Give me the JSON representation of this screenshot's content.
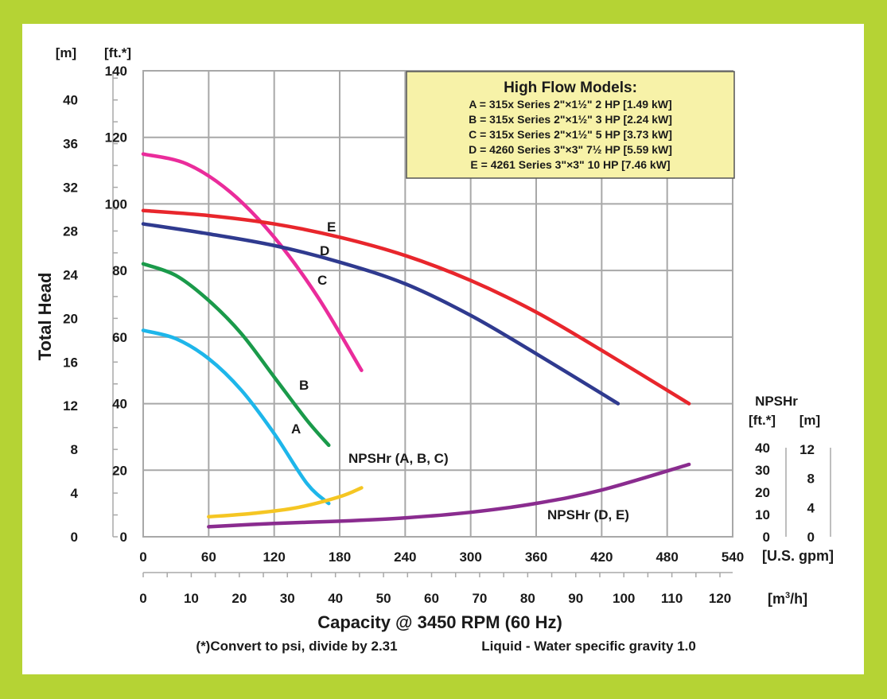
{
  "colors": {
    "frame_border": "#b5d334",
    "legend_bg": "#f7f2a8",
    "grid": "#a8a8a8",
    "A": "#1eb6ea",
    "B": "#1a9a4a",
    "C": "#ea2c9b",
    "D": "#2f3a8f",
    "E": "#e8262c",
    "npshr_abc": "#f5c623",
    "npshr_de": "#8a2c8f"
  },
  "legend": {
    "title": "High Flow Models:",
    "lines": [
      "A = 315x Series 2\"×1½\" 2 HP [1.49 kW]",
      "B = 315x Series 2\"×1½\" 3 HP [2.24 kW]",
      "C = 315x Series 2\"×1½\" 5 HP [3.73 kW]",
      "D = 4260 Series 3\"×3\" 7½ HP [5.59 kW]",
      "E = 4261 Series 3\"×3\" 10 HP [7.46 kW]"
    ]
  },
  "chart_data": {
    "type": "line",
    "title": "",
    "xlabel": "Capacity @ 3450 RPM (60 Hz)",
    "ylabel": "Total Head",
    "footnote_left": "(*)Convert to psi, divide by 2.31",
    "footnote_right": "Liquid - Water specific gravity 1.0",
    "x_unit_gpm": "[U.S. gpm]",
    "x_unit_m3h_pre": "[m",
    "x_unit_m3h_sup": "3",
    "x_unit_m3h_post": "/h]",
    "y_unit_m": "[m]",
    "y_unit_ft": "[ft.*]",
    "xlim": [
      0,
      540
    ],
    "ylim": [
      0,
      140
    ],
    "grid": true,
    "legend_position": "top-right",
    "x_ticks_gpm": [
      0,
      60,
      120,
      180,
      240,
      300,
      360,
      420,
      480,
      540
    ],
    "x_ticks_m3h": [
      0,
      10,
      20,
      30,
      40,
      50,
      60,
      70,
      80,
      90,
      100,
      110,
      120
    ],
    "y_ticks_ft": [
      0,
      20,
      40,
      60,
      80,
      100,
      120,
      140
    ],
    "y_ticks_m": [
      0,
      4,
      8,
      12,
      16,
      20,
      24,
      28,
      32,
      36,
      40
    ],
    "npshr_axis": {
      "title": "NPSHr",
      "unit_ft": "[ft.*]",
      "unit_m": "[m]",
      "ticks_ft": [
        0,
        10,
        20,
        30,
        40
      ],
      "ticks_m": [
        0,
        4,
        8,
        12
      ]
    },
    "series": [
      {
        "name": "A",
        "label": "A",
        "x": [
          0,
          30,
          60,
          90,
          120,
          150,
          170
        ],
        "y": [
          62,
          59.5,
          53.5,
          44,
          31,
          16,
          10
        ]
      },
      {
        "name": "B",
        "label": "B",
        "x": [
          0,
          30,
          60,
          90,
          120,
          150,
          170
        ],
        "y": [
          82,
          78.5,
          71,
          61,
          48,
          35,
          27.5
        ]
      },
      {
        "name": "C",
        "label": "C",
        "x": [
          0,
          40,
          80,
          120,
          160,
          200
        ],
        "y": [
          115,
          112,
          103.5,
          90,
          72,
          50
        ]
      },
      {
        "name": "D",
        "label": "D",
        "x": [
          0,
          60,
          120,
          180,
          240,
          300,
          360,
          435
        ],
        "y": [
          94,
          91,
          87.5,
          82.5,
          76,
          66.5,
          55,
          40
        ]
      },
      {
        "name": "E",
        "label": "E",
        "x": [
          0,
          60,
          120,
          180,
          240,
          300,
          360,
          420,
          500
        ],
        "y": [
          98,
          96.5,
          94,
          90,
          84.5,
          77,
          67.5,
          56,
          40
        ]
      }
    ],
    "npshr_series": [
      {
        "name": "NPSHr (A, B, C)",
        "x": [
          60,
          100,
          140,
          180,
          200
        ],
        "y_ft": [
          9,
          10.5,
          13,
          18,
          22
        ]
      },
      {
        "name": "NPSHr (D, E)",
        "x": [
          60,
          120,
          180,
          240,
          300,
          360,
          420,
          500
        ],
        "y_ft": [
          4.5,
          6,
          7,
          8.5,
          11,
          15,
          21,
          32.5
        ]
      }
    ]
  }
}
